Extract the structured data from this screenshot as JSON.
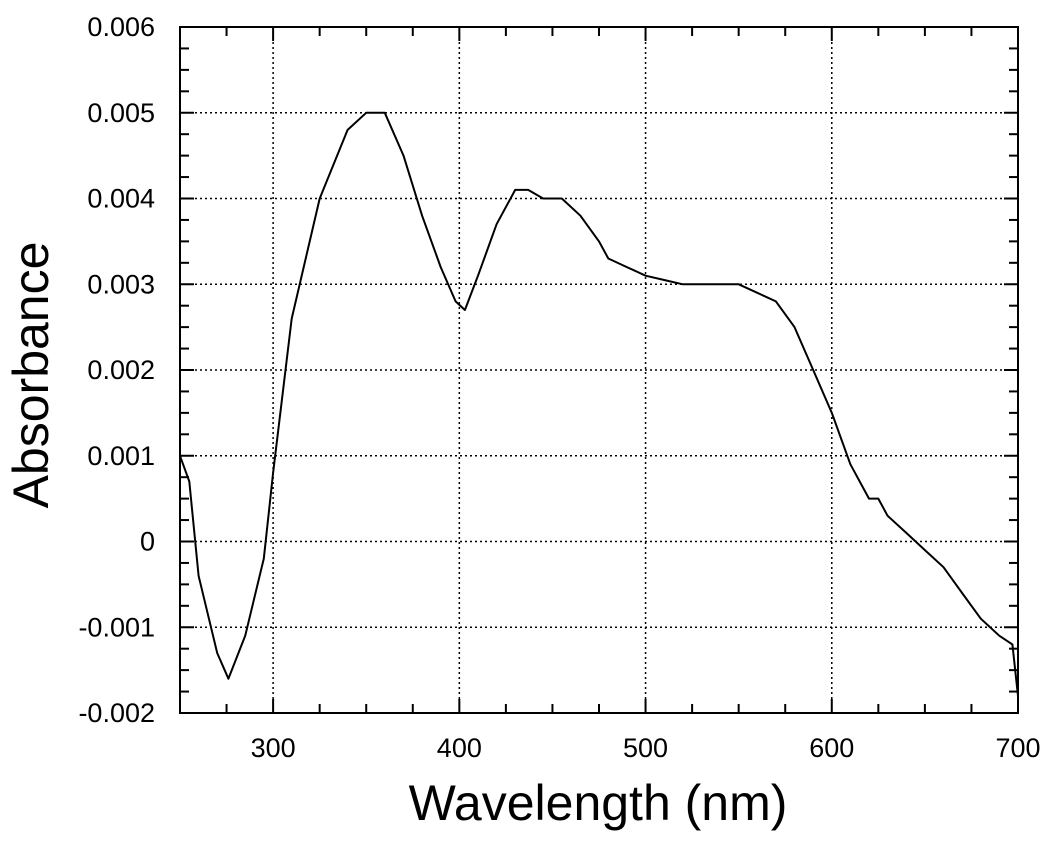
{
  "chart_data": {
    "type": "line",
    "title": "",
    "xlabel": "Wavelength (nm)",
    "ylabel": "Absorbance",
    "xlim": [
      250,
      700
    ],
    "ylim": [
      -0.002,
      0.006
    ],
    "x_ticks": [
      300,
      400,
      500,
      600,
      700
    ],
    "x_tick_labels": [
      "300",
      "400",
      "500",
      "600",
      "700"
    ],
    "y_ticks": [
      -0.002,
      -0.001,
      0,
      0.001,
      0.002,
      0.003,
      0.004,
      0.005,
      0.006
    ],
    "y_tick_labels": [
      "-0.002",
      "-0.001",
      "0",
      "0.001",
      "0.002",
      "0.003",
      "0.004",
      "0.005",
      "0.006"
    ],
    "grid": true,
    "series": [
      {
        "x": [
          250,
          255,
          260,
          270,
          276,
          285,
          295,
          300,
          310,
          325,
          340,
          350,
          360,
          370,
          380,
          390,
          398,
          403,
          410,
          420,
          430,
          437,
          445,
          455,
          465,
          475,
          480,
          490,
          500,
          510,
          520,
          530,
          540,
          550,
          560,
          570,
          580,
          590,
          600,
          610,
          620,
          625,
          630,
          640,
          650,
          660,
          670,
          680,
          690,
          697,
          700
        ],
        "y": [
          0.001,
          0.0007,
          -0.0004,
          -0.0013,
          -0.0016,
          -0.0011,
          -0.0002,
          0.0008,
          0.0026,
          0.004,
          0.0048,
          0.005,
          0.005,
          0.0045,
          0.0038,
          0.0032,
          0.0028,
          0.0027,
          0.0031,
          0.0037,
          0.0041,
          0.0041,
          0.004,
          0.004,
          0.0038,
          0.0035,
          0.0033,
          0.0032,
          0.0031,
          0.00305,
          0.003,
          0.003,
          0.003,
          0.003,
          0.0029,
          0.0028,
          0.0025,
          0.002,
          0.0015,
          0.0009,
          0.0005,
          0.0005,
          0.0003,
          0.0001,
          -0.0001,
          -0.0003,
          -0.0006,
          -0.0009,
          -0.0011,
          -0.0012,
          -0.0018
        ]
      }
    ]
  }
}
